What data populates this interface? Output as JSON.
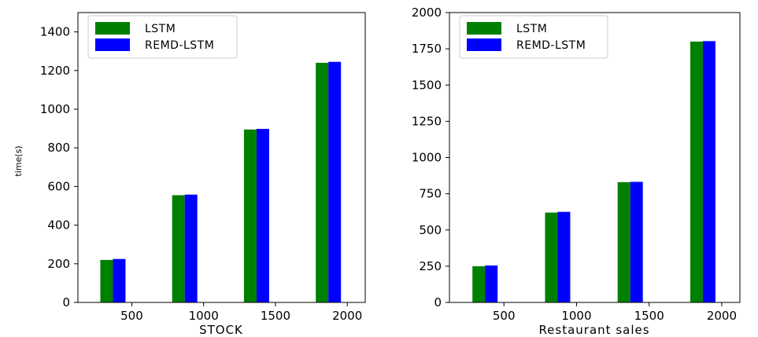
{
  "chart_data": [
    {
      "type": "bar",
      "categories": [
        "500",
        "1000",
        "1500",
        "2000"
      ],
      "x_ticks": [
        "500",
        "1000",
        "1500",
        "2000"
      ],
      "xlabel": "STOCK",
      "ylabel": "time(s)",
      "xlim": [
        125,
        2125
      ],
      "ylim": [
        0,
        1500
      ],
      "yticks": [
        "0",
        "200",
        "400",
        "600",
        "800",
        "1000",
        "1200",
        "1400"
      ],
      "legend_position": "upper-left",
      "grid": false,
      "series": [
        {
          "name": "LSTM",
          "color": "#008000",
          "values": [
            220,
            555,
            895,
            1240
          ]
        },
        {
          "name": "REMD-LSTM",
          "color": "#0000ff",
          "values": [
            225,
            558,
            898,
            1245
          ]
        }
      ]
    },
    {
      "type": "bar",
      "categories": [
        "500",
        "1000",
        "1500",
        "2000"
      ],
      "x_ticks": [
        "500",
        "1000",
        "1500",
        "2000"
      ],
      "xlabel": "Restaurant sales",
      "ylabel": "",
      "xlim": [
        125,
        2125
      ],
      "ylim": [
        0,
        2000
      ],
      "yticks": [
        "0",
        "250",
        "500",
        "750",
        "1000",
        "1250",
        "1500",
        "1750",
        "2000"
      ],
      "legend_position": "upper-left",
      "grid": false,
      "series": [
        {
          "name": "LSTM",
          "color": "#008000",
          "values": [
            250,
            620,
            830,
            1800
          ]
        },
        {
          "name": "REMD-LSTM",
          "color": "#0000ff",
          "values": [
            255,
            625,
            832,
            1803
          ]
        }
      ]
    }
  ]
}
